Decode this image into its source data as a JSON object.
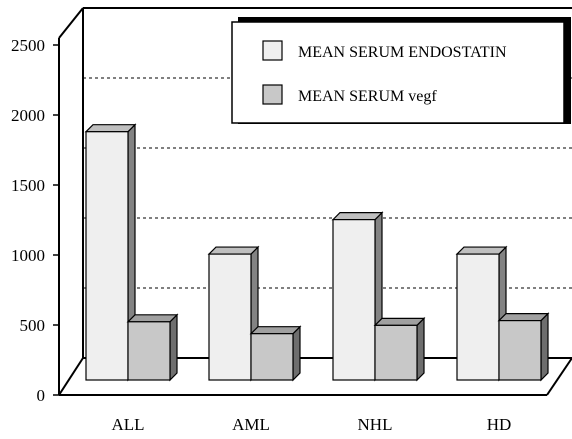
{
  "chart_data": {
    "type": "bar",
    "style": "3d-clustered",
    "categories": [
      "ALL",
      "AML",
      "NHL",
      "HD"
    ],
    "series": [
      {
        "name": "MEAN SERUM ENDOSTATIN",
        "values": [
          2090,
          1060,
          1350,
          1060
        ],
        "color": "#efefef"
      },
      {
        "name": "MEAN SERUM vegf",
        "values": [
          490,
          390,
          460,
          500
        ],
        "color": "#c8c8c8"
      }
    ],
    "ylim": [
      0,
      2500
    ],
    "yticks": [
      0,
      500,
      1000,
      1500,
      2000,
      2500
    ],
    "grid": true,
    "legend_position": "top-right"
  }
}
